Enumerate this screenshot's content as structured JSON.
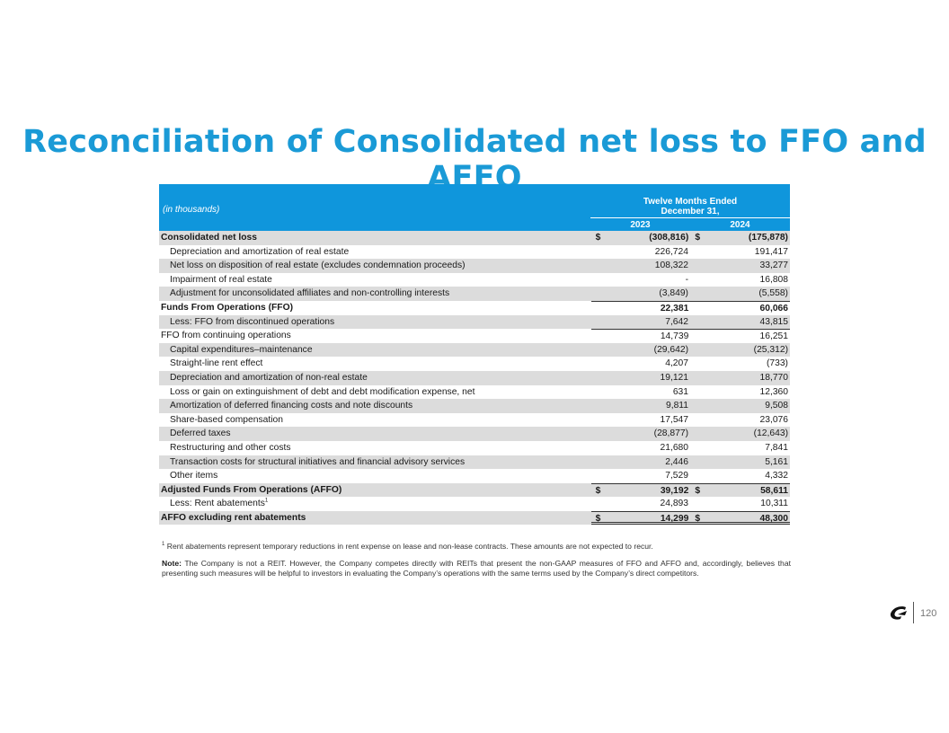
{
  "title": "Reconciliation of Consolidated net loss to FFO and AFFO",
  "table": {
    "units": "(in thousands)",
    "period_line1": "Twelve Months Ended",
    "period_line2": "December 31,",
    "years": [
      "2023",
      "2024"
    ],
    "rows": [
      {
        "label": "Consolidated net loss",
        "v1": "(308,816)",
        "v2": "(175,878)",
        "bold": true,
        "indent": false,
        "dollar": true,
        "shaded": true
      },
      {
        "label": "Depreciation and amortization of real estate",
        "v1": "226,724",
        "v2": "191,417",
        "bold": false,
        "indent": true,
        "dollar": false,
        "shaded": false
      },
      {
        "label": "Net loss on disposition of real estate (excludes condemnation proceeds)",
        "v1": "108,322",
        "v2": "33,277",
        "bold": false,
        "indent": true,
        "dollar": false,
        "shaded": true
      },
      {
        "label": "Impairment of real estate",
        "v1": "-",
        "v2": "16,808",
        "bold": false,
        "indent": true,
        "dollar": false,
        "shaded": false
      },
      {
        "label": "Adjustment for unconsolidated affiliates and non-controlling interests",
        "v1": "(3,849)",
        "v2": "(5,558)",
        "bold": false,
        "indent": true,
        "dollar": false,
        "shaded": true
      },
      {
        "label": "Funds From Operations (FFO)",
        "v1": "22,381",
        "v2": "60,066",
        "bold": true,
        "indent": false,
        "dollar": false,
        "shaded": false,
        "topline": true
      },
      {
        "label": "Less: FFO from discontinued operations",
        "v1": "7,642",
        "v2": "43,815",
        "bold": false,
        "indent": true,
        "dollar": false,
        "shaded": true
      },
      {
        "label": "FFO from continuing operations",
        "v1": "14,739",
        "v2": "16,251",
        "bold": false,
        "indent": false,
        "dollar": false,
        "shaded": false,
        "topline": true
      },
      {
        "label": "Capital expenditures–maintenance",
        "v1": "(29,642)",
        "v2": "(25,312)",
        "bold": false,
        "indent": true,
        "dollar": false,
        "shaded": true
      },
      {
        "label": "Straight-line rent effect",
        "v1": "4,207",
        "v2": "(733)",
        "bold": false,
        "indent": true,
        "dollar": false,
        "shaded": false
      },
      {
        "label": "Depreciation and amortization of non-real estate",
        "v1": "19,121",
        "v2": "18,770",
        "bold": false,
        "indent": true,
        "dollar": false,
        "shaded": true
      },
      {
        "label": "Loss or gain on extinguishment of debt and debt modification expense, net",
        "v1": "631",
        "v2": "12,360",
        "bold": false,
        "indent": true,
        "dollar": false,
        "shaded": false
      },
      {
        "label": "Amortization of deferred financing costs and note discounts",
        "v1": "9,811",
        "v2": "9,508",
        "bold": false,
        "indent": true,
        "dollar": false,
        "shaded": true
      },
      {
        "label": "Share-based compensation",
        "v1": "17,547",
        "v2": "23,076",
        "bold": false,
        "indent": true,
        "dollar": false,
        "shaded": false
      },
      {
        "label": "Deferred taxes",
        "v1": "(28,877)",
        "v2": "(12,643)",
        "bold": false,
        "indent": true,
        "dollar": false,
        "shaded": true
      },
      {
        "label": "Restructuring and other costs",
        "v1": "21,680",
        "v2": "7,841",
        "bold": false,
        "indent": true,
        "dollar": false,
        "shaded": false
      },
      {
        "label": "Transaction costs for structural initiatives and financial advisory services",
        "v1": "2,446",
        "v2": "5,161",
        "bold": false,
        "indent": true,
        "dollar": false,
        "shaded": true
      },
      {
        "label": "Other items",
        "v1": "7,529",
        "v2": "4,332",
        "bold": false,
        "indent": true,
        "dollar": false,
        "shaded": false
      },
      {
        "label": "Adjusted Funds From Operations (AFFO)",
        "v1": "39,192",
        "v2": "58,611",
        "bold": true,
        "indent": false,
        "dollar": true,
        "shaded": true,
        "topline": true
      },
      {
        "label": "Less: Rent abatements",
        "sup": "1",
        "v1": "24,893",
        "v2": "10,311",
        "bold": false,
        "indent": true,
        "dollar": false,
        "shaded": false
      },
      {
        "label": "AFFO excluding rent abatements",
        "v1": "14,299",
        "v2": "48,300",
        "bold": true,
        "indent": false,
        "dollar": true,
        "shaded": true,
        "topline": true,
        "dbl": true
      }
    ]
  },
  "dollar_sign": "$",
  "footnote1_marker": "1",
  "footnote1": "Rent abatements represent temporary reductions in rent expense on lease and non-lease contracts. These amounts are not expected to recur.",
  "note_label": "Note:",
  "note_text": "The Company is not a REIT. However, the Company competes directly with REITs that present the non-GAAP measures of FFO and AFFO and, accordingly, believes that presenting such measures will be helpful to investors in evaluating the Company’s operations with the same terms used by the Company’s direct competitors.",
  "page_number": "120",
  "colors": {
    "accent": "#1a9ad6",
    "header_bg": "#0f96dc",
    "row_shade": "#dcdcdc"
  }
}
